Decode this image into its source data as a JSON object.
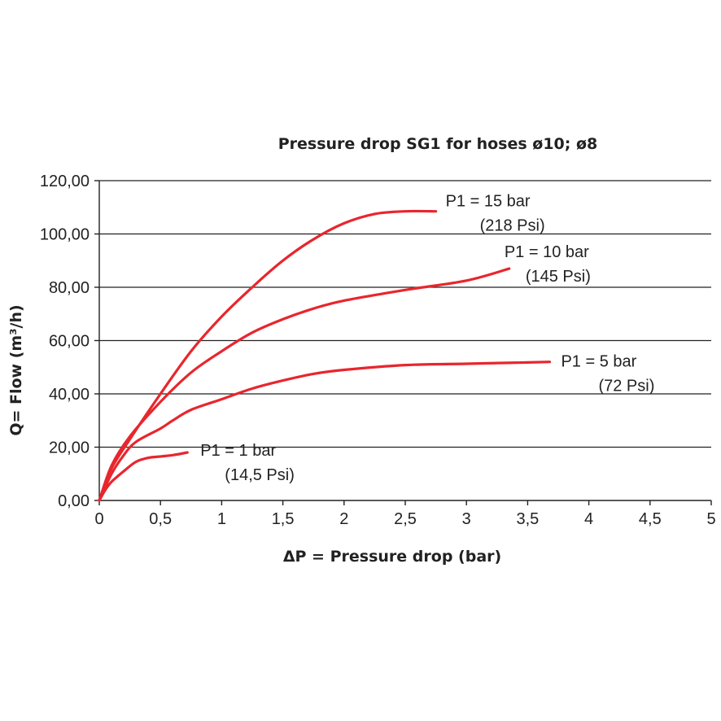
{
  "chart_data": {
    "type": "line",
    "title": "Pressure drop SG1 for hoses ø10; ø8",
    "xlabel": "ΔP = Pressure drop (bar)",
    "ylabel": "Q= Flow (m³/h)",
    "xlim": [
      0,
      5
    ],
    "ylim": [
      0,
      120
    ],
    "x_ticks": [
      "0",
      "0,5",
      "1",
      "1,5",
      "2",
      "2,5",
      "3",
      "3,5",
      "4",
      "4,5",
      "5"
    ],
    "y_ticks": [
      "0,00",
      "20,00",
      "40,00",
      "60,00",
      "80,00",
      "100,00",
      "120,00"
    ],
    "grid": "horizontal",
    "line_color": "#e8262d",
    "series": [
      {
        "name": "P1 = 1 bar",
        "annotation": [
          "P1 = 1 bar",
          "(14,5 Psi)"
        ],
        "x": [
          0,
          0.05,
          0.1,
          0.2,
          0.3,
          0.4,
          0.5,
          0.6,
          0.72
        ],
        "y": [
          0,
          4,
          7,
          11,
          14.5,
          16,
          16.5,
          17,
          18
        ]
      },
      {
        "name": "P1 = 5 bar",
        "annotation": [
          "P1 = 5 bar",
          "(72 Psi)"
        ],
        "x": [
          0,
          0.1,
          0.2,
          0.3,
          0.5,
          0.6,
          0.75,
          1.0,
          1.25,
          1.5,
          1.75,
          2.0,
          2.5,
          3.0,
          3.5,
          3.68
        ],
        "y": [
          0,
          10,
          17,
          22,
          27,
          30,
          34,
          38,
          42,
          45,
          47.5,
          49,
          50.8,
          51.3,
          51.8,
          52
        ]
      },
      {
        "name": "P1 = 10 bar",
        "annotation": [
          "P1 = 10 bar",
          "(145 Psi)"
        ],
        "x": [
          0,
          0.1,
          0.25,
          0.5,
          0.75,
          1.0,
          1.25,
          1.5,
          1.75,
          2.0,
          2.5,
          3.0,
          3.35
        ],
        "y": [
          0,
          13,
          24,
          37,
          48,
          56,
          63,
          68,
          72,
          75,
          79,
          82.5,
          87
        ]
      },
      {
        "name": "P1 = 15 bar",
        "annotation": [
          "P1 = 15 bar",
          "(218 Psi)"
        ],
        "x": [
          0,
          0.1,
          0.25,
          0.5,
          0.75,
          1.0,
          1.25,
          1.5,
          1.75,
          2.0,
          2.25,
          2.5,
          2.75
        ],
        "y": [
          0,
          12,
          23,
          40,
          56,
          69,
          80,
          90,
          98,
          104,
          107.5,
          108.5,
          108.5
        ]
      }
    ]
  }
}
